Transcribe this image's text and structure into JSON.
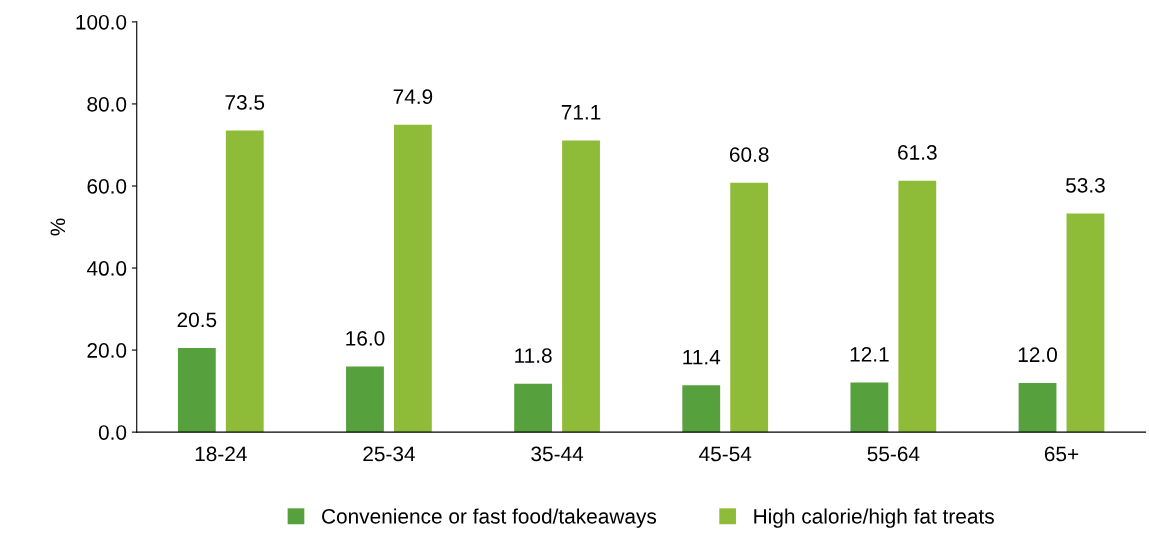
{
  "chart_data": {
    "type": "bar",
    "ylabel": "%",
    "categories": [
      "18-24",
      "25-34",
      "35-44",
      "45-54",
      "55-64",
      "65+"
    ],
    "series": [
      {
        "name": "Convenience or fast food/takeaways",
        "color": "#56a13d",
        "values": [
          20.5,
          16.0,
          11.8,
          11.4,
          12.1,
          12.0
        ],
        "value_labels": [
          "20.5",
          "16.0",
          "11.8",
          "11.4",
          "12.1",
          "12.0"
        ]
      },
      {
        "name": "High calorie/high fat treats",
        "color": "#8fbc38",
        "values": [
          73.5,
          74.9,
          71.1,
          60.8,
          61.3,
          53.3
        ],
        "value_labels": [
          "73.5",
          "74.9",
          "71.1",
          "60.8",
          "61.3",
          "53.3"
        ]
      }
    ],
    "ylim": [
      0,
      100
    ],
    "yticks": [
      {
        "value": 0,
        "label": "0.0"
      },
      {
        "value": 20,
        "label": "20.0"
      },
      {
        "value": 40,
        "label": "40.0"
      },
      {
        "value": 60,
        "label": "60.0"
      },
      {
        "value": 80,
        "label": "80.0"
      },
      {
        "value": 100,
        "label": "100.0"
      }
    ],
    "grid": false,
    "legend": "bottom"
  }
}
